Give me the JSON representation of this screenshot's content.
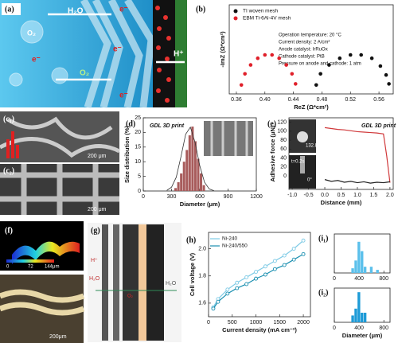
{
  "panels": {
    "a": {
      "label": "(a)",
      "texts": [
        "H₂O",
        "e⁻",
        "O₂",
        "e⁻",
        "e⁻",
        "O₂",
        "e⁻",
        "H⁺"
      ]
    },
    "c1": {
      "label": "(c₁)",
      "scale": "200 μm"
    },
    "c2": {
      "label": "(c₂)",
      "scale": "200 μm"
    },
    "f": {
      "label": "(f)",
      "colorbar": [
        "0",
        "72",
        "144μm"
      ],
      "scale": "200μm"
    },
    "g": {
      "label": "(g)",
      "texts": [
        "H⁺",
        "H₂O",
        "O₂",
        "H₂O"
      ]
    }
  },
  "chart_data": [
    {
      "type": "scatter",
      "panel": "(b)",
      "xlabel": "ReZ (Ω*cm²)",
      "ylabel": "-ImZ (Ω*cm²)",
      "xlim": [
        0.35,
        0.58
      ],
      "ylim": [
        -0.005,
        0.075
      ],
      "xticks": [
        0.36,
        {
          "value": 0.4,
          "label": "0.40"
        },
        0.44,
        0.48,
        0.52,
        0.56
      ],
      "yticks": [],
      "legend": "upper left",
      "series": [
        {
          "name": "TI woven mesh",
          "color": "#111111",
          "x": [
            0.472,
            0.478,
            0.49,
            0.505,
            0.52,
            0.535,
            0.55,
            0.562,
            0.57,
            0.574
          ],
          "values": [
            0.003,
            0.013,
            0.021,
            0.027,
            0.03,
            0.03,
            0.027,
            0.02,
            0.012,
            0.004
          ]
        },
        {
          "name": "EBM Ti-6Al-4V mesh",
          "color": "#e0202a",
          "x": [
            0.367,
            0.372,
            0.38,
            0.39,
            0.4,
            0.41,
            0.42,
            0.43,
            0.438,
            0.443
          ],
          "values": [
            0.003,
            0.013,
            0.021,
            0.027,
            0.03,
            0.03,
            0.027,
            0.021,
            0.013,
            0.004
          ]
        }
      ],
      "annotations": [
        "Operation temperature: 20 °C",
        "Current density: 2 A/cm²",
        "Anode catalyst: IrRuOx",
        "Cathode catalyst: PtB",
        "Pressure on anode and cathode: 1 atm"
      ]
    },
    {
      "type": "histogram",
      "panel": "(d)",
      "title": "GDL 3D print",
      "xlabel": "Diameter (μm)",
      "ylabel": "Size distribution (%)",
      "xlim": [
        0,
        1200
      ],
      "ylim": [
        0,
        25
      ],
      "xticks": [
        0,
        300,
        600,
        900,
        1200
      ],
      "yticks": [
        0,
        5,
        10,
        15,
        20,
        25
      ],
      "color": "#a85c5c",
      "bins": [
        330,
        360,
        390,
        420,
        450,
        480,
        510,
        540,
        570,
        600,
        630,
        660
      ],
      "values": [
        1,
        3,
        6,
        10,
        14,
        19,
        22,
        17,
        11,
        6,
        2
      ],
      "fit": {
        "x": [
          250,
          300,
          350,
          400,
          450,
          500,
          550,
          600,
          650,
          700,
          750
        ],
        "values": [
          0.2,
          1.3,
          4.7,
          11.7,
          19.4,
          21.8,
          16.6,
          8.6,
          3,
          0.7,
          0.1
        ]
      }
    },
    {
      "type": "line",
      "panel": "(e)",
      "title": "GDL 3D print",
      "xlabel": "Distance (mm)",
      "ylabel": "Adhesive force (μN)",
      "xlim": [
        -1.1,
        2.1
      ],
      "ylim": [
        -30,
        130
      ],
      "xticks": [
        {
          "value": -1,
          "label": "-1.0"
        },
        -0.5,
        {
          "value": 0,
          "label": "0.0"
        },
        0.5,
        {
          "value": 1,
          "label": "1.0"
        },
        1.5,
        {
          "value": 2,
          "label": "2.0"
        }
      ],
      "yticks": [
        0,
        20,
        40,
        60,
        80,
        100,
        120
      ],
      "x": [
        0,
        0.2,
        0.4,
        0.6,
        0.8,
        1.0,
        1.2,
        1.4,
        1.6,
        1.8,
        1.9,
        2.0
      ],
      "series": [
        {
          "color": "#d0383a",
          "values": [
            108,
            106,
            104,
            103,
            101,
            99,
            98,
            97,
            96,
            94,
            45,
            -15
          ]
        },
        {
          "color": "#222222",
          "values": [
            -8,
            -12,
            -10,
            -14,
            -12,
            -15,
            -13,
            -16,
            -14,
            -15,
            -14,
            -13
          ]
        }
      ],
      "annotations": [
        "132.8°",
        "t=0.2s",
        "0°"
      ]
    },
    {
      "type": "line",
      "panel": "(h)",
      "xlabel": "Current density (mA cm⁻²)",
      "ylabel": "Cell voltage (V)",
      "xlim": [
        0,
        2150
      ],
      "ylim": [
        1.5,
        2.12
      ],
      "xticks": [
        0,
        500,
        1000,
        1500,
        2000
      ],
      "yticks": [
        1.6,
        1.8,
        {
          "value": 2,
          "label": "2.0"
        }
      ],
      "markers": true,
      "legend": "upper left",
      "x": [
        100,
        200,
        400,
        600,
        800,
        1000,
        1200,
        1400,
        1600,
        1800,
        2000
      ],
      "series": [
        {
          "name": "Ni-240",
          "color": "#7fcbe6",
          "values": [
            1.57,
            1.63,
            1.7,
            1.75,
            1.79,
            1.83,
            1.87,
            1.91,
            1.95,
            2.0,
            2.06
          ]
        },
        {
          "name": "Ni-240/550",
          "color": "#1a8fb0",
          "values": [
            1.56,
            1.61,
            1.67,
            1.71,
            1.74,
            1.78,
            1.81,
            1.85,
            1.88,
            1.92,
            1.96
          ]
        }
      ]
    },
    {
      "type": "histogram",
      "panel": "(i₁)",
      "xlim": [
        0,
        900
      ],
      "ylim": [
        0,
        25
      ],
      "xticks": [
        0,
        400,
        800
      ],
      "yticks": [],
      "color": "#5bc0eb",
      "bins": [
        275,
        325,
        375,
        425,
        475,
        525,
        575,
        625,
        675,
        725
      ],
      "values": [
        3,
        8,
        20,
        14,
        4,
        0,
        4,
        0,
        2
      ]
    },
    {
      "type": "histogram",
      "panel": "(i₂)",
      "xlabel": "Diameter (μm)",
      "xlim": [
        0,
        900
      ],
      "ylim": [
        0,
        25
      ],
      "xticks": [
        0,
        400,
        800
      ],
      "yticks": [],
      "color": "#1e9bd7",
      "bins": [
        275,
        325,
        375,
        425,
        475,
        525,
        575,
        625,
        675,
        725
      ],
      "values": [
        5,
        10,
        22,
        7,
        7,
        0,
        0,
        0,
        0
      ]
    }
  ]
}
